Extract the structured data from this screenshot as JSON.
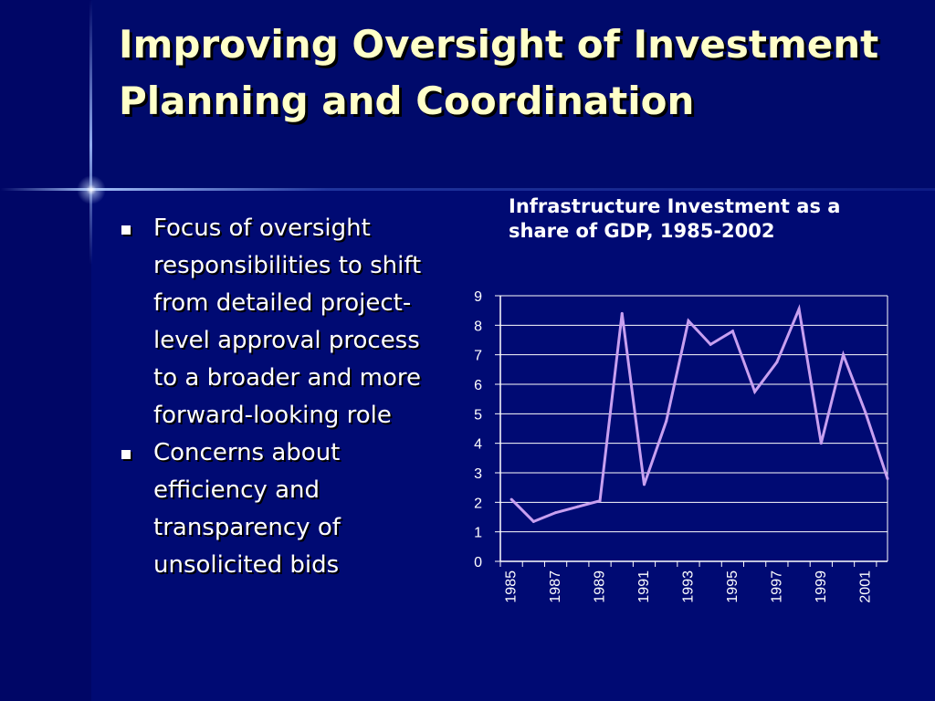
{
  "slide": {
    "title": "Improving Oversight of Investment Planning and Coordination",
    "bullets": [
      "Focus of oversight responsibilities to shift from detailed project-level approval process to a broader and more forward-looking role",
      "Concerns about efficiency and transparency of unsolicited bids"
    ]
  },
  "colors": {
    "background": "#000a73",
    "title": "#ffffc8",
    "line": "#c8a0f0"
  },
  "chart_data": {
    "type": "line",
    "title": "Infrastructure Investment as a share of GDP, 1985-2002",
    "x": [
      1985,
      1986,
      1987,
      1988,
      1989,
      1990,
      1991,
      1992,
      1993,
      1994,
      1995,
      1996,
      1997,
      1998,
      1999,
      2000,
      2001,
      2002
    ],
    "x_tick_labels": [
      "1985",
      "1987",
      "1989",
      "1991",
      "1993",
      "1995",
      "1997",
      "1999",
      "2001"
    ],
    "y_tick_labels": [
      "0",
      "1",
      "2",
      "3",
      "4",
      "5",
      "6",
      "7",
      "8",
      "9"
    ],
    "series": [
      {
        "values": [
          2.1,
          1.35,
          1.65,
          1.85,
          2.05,
          8.4,
          2.6,
          4.75,
          8.15,
          7.35,
          7.8,
          5.75,
          6.75,
          8.55,
          4.0,
          7.0,
          5.05,
          2.8
        ]
      }
    ],
    "ylim": [
      0,
      9
    ],
    "grid": true,
    "legend": "none"
  }
}
